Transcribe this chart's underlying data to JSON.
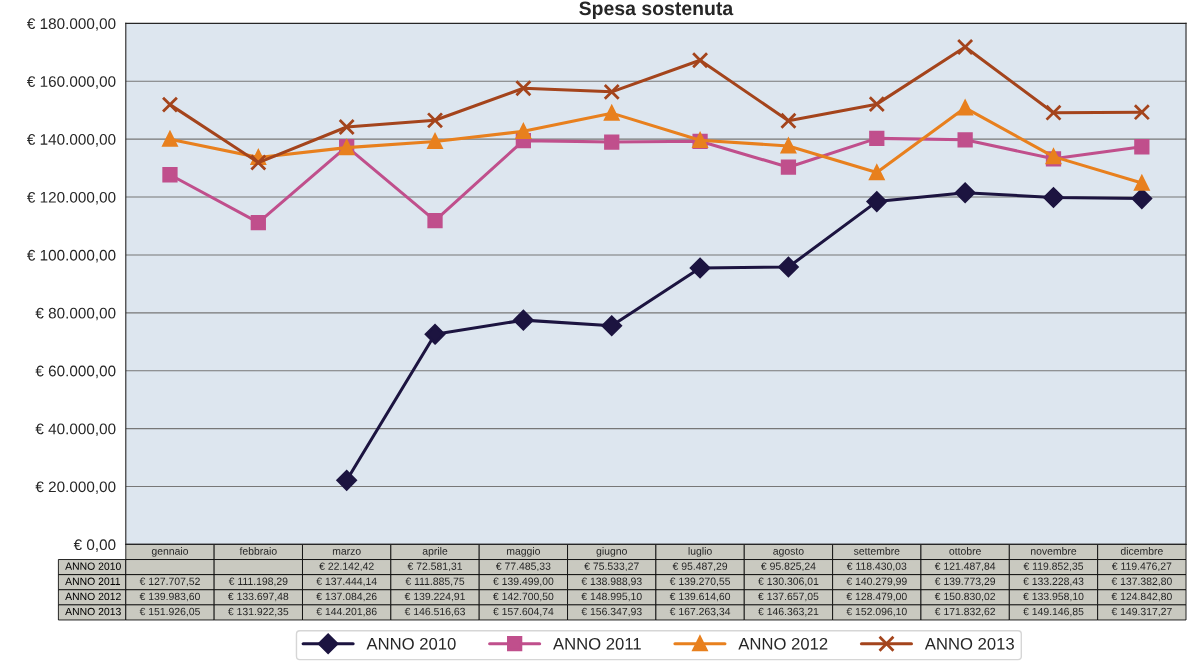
{
  "chart_data": {
    "type": "line",
    "title": "Spesa sostenuta",
    "categories": [
      "gennaio",
      "febbraio",
      "marzo",
      "aprile",
      "maggio",
      "giugno",
      "luglio",
      "agosto",
      "settembre",
      "ottobre",
      "novembre",
      "dicembre"
    ],
    "series": [
      {
        "name": "ANNO 2010",
        "color": "#1c1440",
        "marker": "diamond",
        "values": [
          null,
          null,
          22142.42,
          72581.31,
          77485.33,
          75533.27,
          95487.29,
          95825.24,
          118430.03,
          121487.84,
          119852.35,
          119476.27
        ],
        "value_labels": [
          null,
          null,
          "€ 22.142,42",
          "€ 72.581,31",
          "€ 77.485,33",
          "€ 75.533,27",
          "€ 95.487,29",
          "€ 95.825,24",
          "€ 118.430,03",
          "€ 121.487,84",
          "€ 119.852,35",
          "€ 119.476,27"
        ]
      },
      {
        "name": "ANNO 2011",
        "color": "#c04f8c",
        "marker": "square",
        "values": [
          127707.52,
          111198.29,
          137444.14,
          111885.75,
          139499.0,
          138988.93,
          139270.55,
          130306.01,
          140279.99,
          139773.29,
          133228.43,
          137382.8
        ],
        "value_labels": [
          "€ 127.707,52",
          "€ 111.198,29",
          "€ 137.444,14",
          "€ 111.885,75",
          "€ 139.499,00",
          "€ 138.988,93",
          "€ 139.270,55",
          "€ 130.306,01",
          "€ 140.279,99",
          "€ 139.773,29",
          "€ 133.228,43",
          "€ 137.382,80"
        ]
      },
      {
        "name": "ANNO 2012",
        "color": "#e8801e",
        "marker": "triangle",
        "values": [
          139983.6,
          133697.48,
          137084.26,
          139224.91,
          142700.5,
          148995.1,
          139614.6,
          137657.05,
          128479.0,
          150830.02,
          133958.1,
          124842.8
        ],
        "value_labels": [
          "€ 139.983,60",
          "€ 133.697,48",
          "€ 137.084,26",
          "€ 139.224,91",
          "€ 142.700,50",
          "€ 148.995,10",
          "€ 139.614,60",
          "€ 137.657,05",
          "€ 128.479,00",
          "€ 150.830,02",
          "€ 133.958,10",
          "€ 124.842,80"
        ]
      },
      {
        "name": "ANNO 2013",
        "color": "#a4441c",
        "marker": "cross",
        "values": [
          151926.05,
          131922.35,
          144201.86,
          146516.63,
          157604.74,
          156347.93,
          167263.34,
          146363.21,
          152096.1,
          171832.62,
          149146.85,
          149317.27
        ],
        "value_labels": [
          "€ 151.926,05",
          "€ 131.922,35",
          "€ 144.201,86",
          "€ 146.516,63",
          "€ 157.604,74",
          "€ 156.347,93",
          "€ 167.263,34",
          "€ 146.363,21",
          "€ 152.096,10",
          "€ 171.832,62",
          "€ 149.146,85",
          "€ 149.317,27"
        ]
      }
    ],
    "ylim": [
      0,
      180000
    ],
    "yticks": [
      {
        "value": 0,
        "label": "€ 0,00"
      },
      {
        "value": 20000,
        "label": "€ 20.000,00"
      },
      {
        "value": 40000,
        "label": "€ 40.000,00"
      },
      {
        "value": 60000,
        "label": "€ 60.000,00"
      },
      {
        "value": 80000,
        "label": "€ 80.000,00"
      },
      {
        "value": 100000,
        "label": "€ 100.000,00"
      },
      {
        "value": 120000,
        "label": "€ 120.000,00"
      },
      {
        "value": 140000,
        "label": "€ 140.000,00"
      },
      {
        "value": 160000,
        "label": "€ 160.000,00"
      },
      {
        "value": 180000,
        "label": "€ 180.000,00"
      }
    ],
    "grid": "y",
    "legend": "bottom",
    "line_style": "solid"
  }
}
